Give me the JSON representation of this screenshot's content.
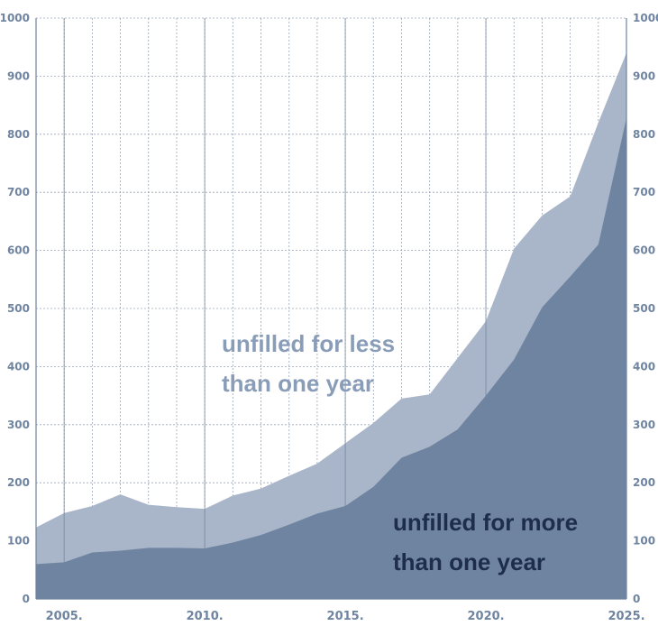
{
  "chart_data": {
    "type": "area",
    "stacked": false,
    "x": [
      2004,
      2005,
      2006,
      2007,
      2008,
      2009,
      2010,
      2011,
      2012,
      2013,
      2014,
      2015,
      2016,
      2017,
      2018,
      2019,
      2020,
      2021,
      2022,
      2023,
      2024,
      2025
    ],
    "series": [
      {
        "name": "unfilled for less than one year",
        "label_lines": [
          "unfilled for less",
          "than one year"
        ],
        "color": "#a9b5c8",
        "text_color": "#8a9db8",
        "values": [
          123,
          148,
          160,
          180,
          162,
          158,
          155,
          178,
          190,
          212,
          233,
          268,
          303,
          345,
          352,
          415,
          478,
          603,
          660,
          693,
          820,
          940
        ]
      },
      {
        "name": "unfilled for more than one year",
        "label_lines": [
          "unfilled for more",
          "than one year"
        ],
        "color": "#6e84a0",
        "text_color": "#1d2d4a",
        "values": [
          60,
          63,
          80,
          83,
          88,
          88,
          87,
          97,
          110,
          128,
          147,
          160,
          193,
          243,
          262,
          292,
          350,
          412,
          502,
          555,
          610,
          828
        ]
      }
    ],
    "ylim": [
      0,
      1000
    ],
    "y_ticks": [
      0,
      100,
      200,
      300,
      400,
      500,
      600,
      700,
      800,
      900,
      1000
    ],
    "x_tick_values": [
      2005,
      2010,
      2015,
      2020,
      2025
    ],
    "x_tick_labels": [
      "2005.",
      "2010.",
      "2015.",
      "2020.",
      "2025."
    ],
    "grid": true,
    "dual_y_axis": true,
    "title": "",
    "xlabel": "",
    "ylabel": ""
  }
}
